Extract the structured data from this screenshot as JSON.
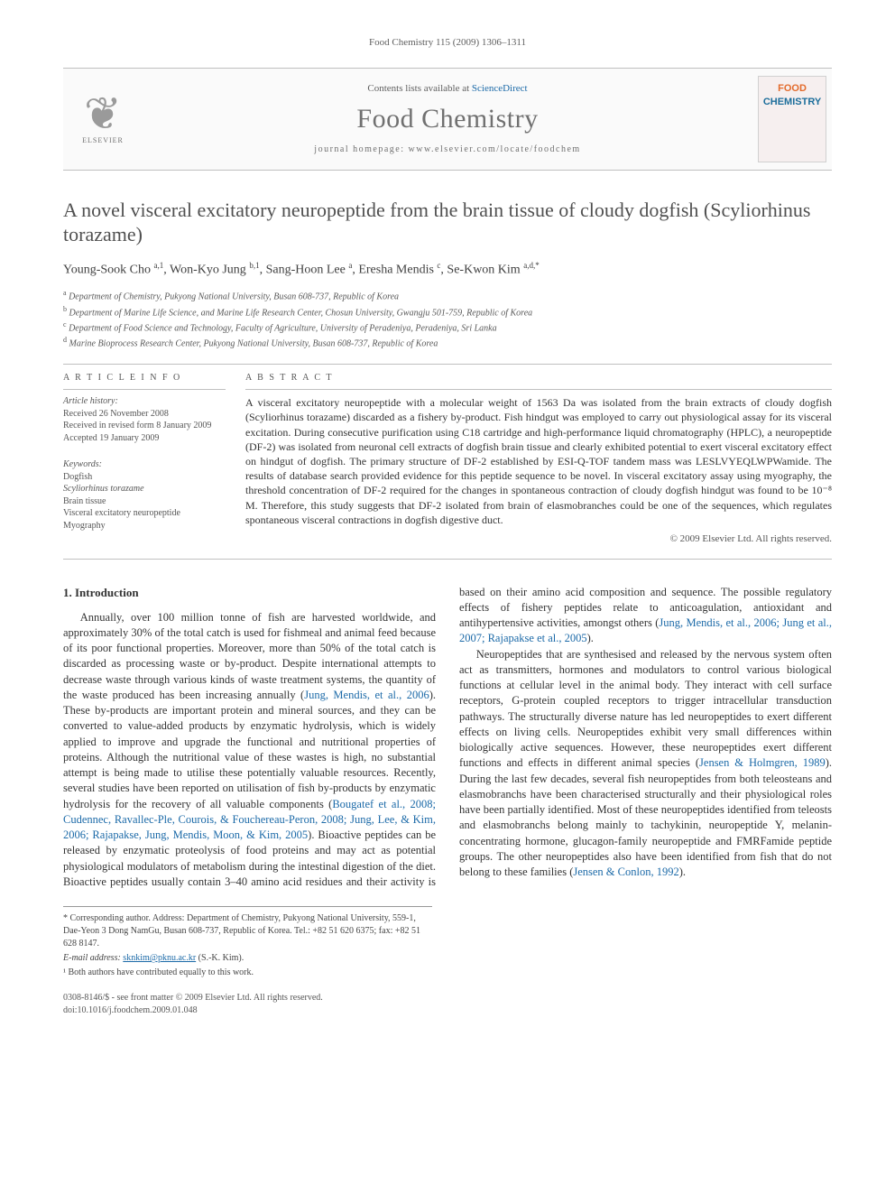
{
  "running_head": "Food Chemistry 115 (2009) 1306–1311",
  "masthead": {
    "contents_prefix": "Contents lists available at ",
    "contents_link": "ScienceDirect",
    "journal_title": "Food Chemistry",
    "homepage_line": "journal homepage: www.elsevier.com/locate/foodchem",
    "publisher": "ELSEVIER",
    "cover_word1": "FOOD",
    "cover_word2": "CHEMISTRY"
  },
  "article": {
    "title": "A novel visceral excitatory neuropeptide from the brain tissue of cloudy dogfish (Scyliorhinus torazame)",
    "authors_html": "Young-Sook Cho <sup>a,1</sup>, Won-Kyo Jung <sup>b,1</sup>, Sang-Hoon Lee <sup>a</sup>, Eresha Mendis <sup>c</sup>, Se-Kwon Kim <sup>a,d,*</sup>",
    "affiliations": [
      {
        "sup": "a",
        "text": "Department of Chemistry, Pukyong National University, Busan 608-737, Republic of Korea"
      },
      {
        "sup": "b",
        "text": "Department of Marine Life Science, and Marine Life Research Center, Chosun University, Gwangju 501-759, Republic of Korea"
      },
      {
        "sup": "c",
        "text": "Department of Food Science and Technology, Faculty of Agriculture, University of Peradeniya, Peradeniya, Sri Lanka"
      },
      {
        "sup": "d",
        "text": "Marine Bioprocess Research Center, Pukyong National University, Busan 608-737, Republic of Korea"
      }
    ]
  },
  "article_info": {
    "heading": "A R T I C L E   I N F O",
    "history_label": "Article history:",
    "history": [
      "Received 26 November 2008",
      "Received in revised form 8 January 2009",
      "Accepted 19 January 2009"
    ],
    "keywords_label": "Keywords:",
    "keywords": [
      "Dogfish",
      "Scyliorhinus torazame",
      "Brain tissue",
      "Visceral excitatory neuropeptide",
      "Myography"
    ]
  },
  "abstract": {
    "heading": "A B S T R A C T",
    "text": "A visceral excitatory neuropeptide with a molecular weight of 1563 Da was isolated from the brain extracts of cloudy dogfish (Scyliorhinus torazame) discarded as a fishery by-product. Fish hindgut was employed to carry out physiological assay for its visceral excitation. During consecutive purification using C18 cartridge and high-performance liquid chromatography (HPLC), a neuropeptide (DF-2) was isolated from neuronal cell extracts of dogfish brain tissue and clearly exhibited potential to exert visceral excitatory effect on hindgut of dogfish. The primary structure of DF-2 established by ESI-Q-TOF tandem mass was LESLVYEQLWPWamide. The results of database search provided evidence for this peptide sequence to be novel. In visceral excitatory assay using myography, the threshold concentration of DF-2 required for the changes in spontaneous contraction of cloudy dogfish hindgut was found to be 10⁻⁸ M. Therefore, this study suggests that DF-2 isolated from brain of elasmobranches could be one of the sequences, which regulates spontaneous visceral contractions in dogfish digestive duct.",
    "copyright": "© 2009 Elsevier Ltd. All rights reserved."
  },
  "body": {
    "section_heading": "1. Introduction",
    "p1_a": "Annually, over 100 million tonne of fish are harvested worldwide, and approximately 30% of the total catch is used for fishmeal and animal feed because of its poor functional properties. Moreover, more than 50% of the total catch is discarded as processing waste or by-product. Despite international attempts to decrease waste through various kinds of waste treatment systems, the quantity of the waste produced has been increasing annually (",
    "p1_cite1": "Jung, Mendis, et al., 2006",
    "p1_b": "). These by-products are important protein and mineral sources, and they can be converted to value-added products by enzymatic hydrolysis, which is widely applied to improve and upgrade the functional and nutritional properties of proteins. Although the nutritional value of these wastes is high, no substantial attempt is being made to utilise these potentially valuable resources. Recently, several studies have been reported on utilisation of fish by-products by enzymatic hydrolysis for the recovery of all valuable components (",
    "p1_cite2": "Bougatef et al., 2008; Cudennec, Ravallec-Ple, Courois, & Fouchereau-Peron, 2008; Jung, Lee, & Kim, 2006; Rajapakse, Jung, Mendis, Moon, & Kim, 2005",
    "p1_c": "). Bioactive peptides can be released by enzymatic proteolysis of food proteins and may act as potential physiological modulators of metabolism during the intestinal digestion of the diet. Bioactive peptides usually contain 3–40 amino acid residues and their activity is based on their amino acid composition and sequence. The possible regulatory effects of fishery peptides relate to anticoagulation, antioxidant and antihypertensive activities, amongst others (",
    "p1_cite3": "Jung, Mendis, et al., 2006; Jung et al., 2007; Rajapakse et al., 2005",
    "p1_d": ").",
    "p2_a": "Neuropeptides that are synthesised and released by the nervous system often act as transmitters, hormones and modulators to control various biological functions at cellular level in the animal body. They interact with cell surface receptors, G-protein coupled receptors to trigger intracellular transduction pathways. The structurally diverse nature has led neuropeptides to exert different effects on living cells. Neuropeptides exhibit very small differences within biologically active sequences. However, these neuropeptides exert different functions and effects in different animal species (",
    "p2_cite1": "Jensen & Holmgren, 1989",
    "p2_b": "). During the last few decades, several fish neuropeptides from both teleosteans and elasmobranchs have been characterised structurally and their physiological roles have been partially identified. Most of these neuropeptides identified from teleosts and elasmobranchs belong mainly to tachykinin, neuropeptide Y, melanin-concentrating hormone, glucagon-family neuropeptide and FMRFamide peptide groups. The other neuropeptides also have been identified from fish that do not belong to these families (",
    "p2_cite2": "Jensen & Conlon, 1992",
    "p2_c": ")."
  },
  "footnotes": {
    "corr_label": "* Corresponding author.",
    "corr_text": " Address: Department of Chemistry, Pukyong National University, 559-1, Dae-Yeon 3 Dong NamGu, Busan 608-737, Republic of Korea. Tel.: +82 51 620 6375; fax: +82 51 628 8147.",
    "email_label": "E-mail address: ",
    "email_value": "sknkim@pknu.ac.kr",
    "email_who": " (S.-K. Kim).",
    "contrib": "¹ Both authors have contributed equally to this work."
  },
  "footer": {
    "line1": "0308-8146/$ - see front matter © 2009 Elsevier Ltd. All rights reserved.",
    "line2": "doi:10.1016/j.foodchem.2009.01.048"
  },
  "colors": {
    "link": "#1c6aa8",
    "text": "#333333",
    "muted": "#606060",
    "rule": "#c0c0c0"
  },
  "typography": {
    "body_font": "Times New Roman",
    "title_size_pt": 22,
    "journal_title_size_pt": 30,
    "body_size_pt": 12.5,
    "abstract_size_pt": 12,
    "footnote_size_pt": 10
  }
}
